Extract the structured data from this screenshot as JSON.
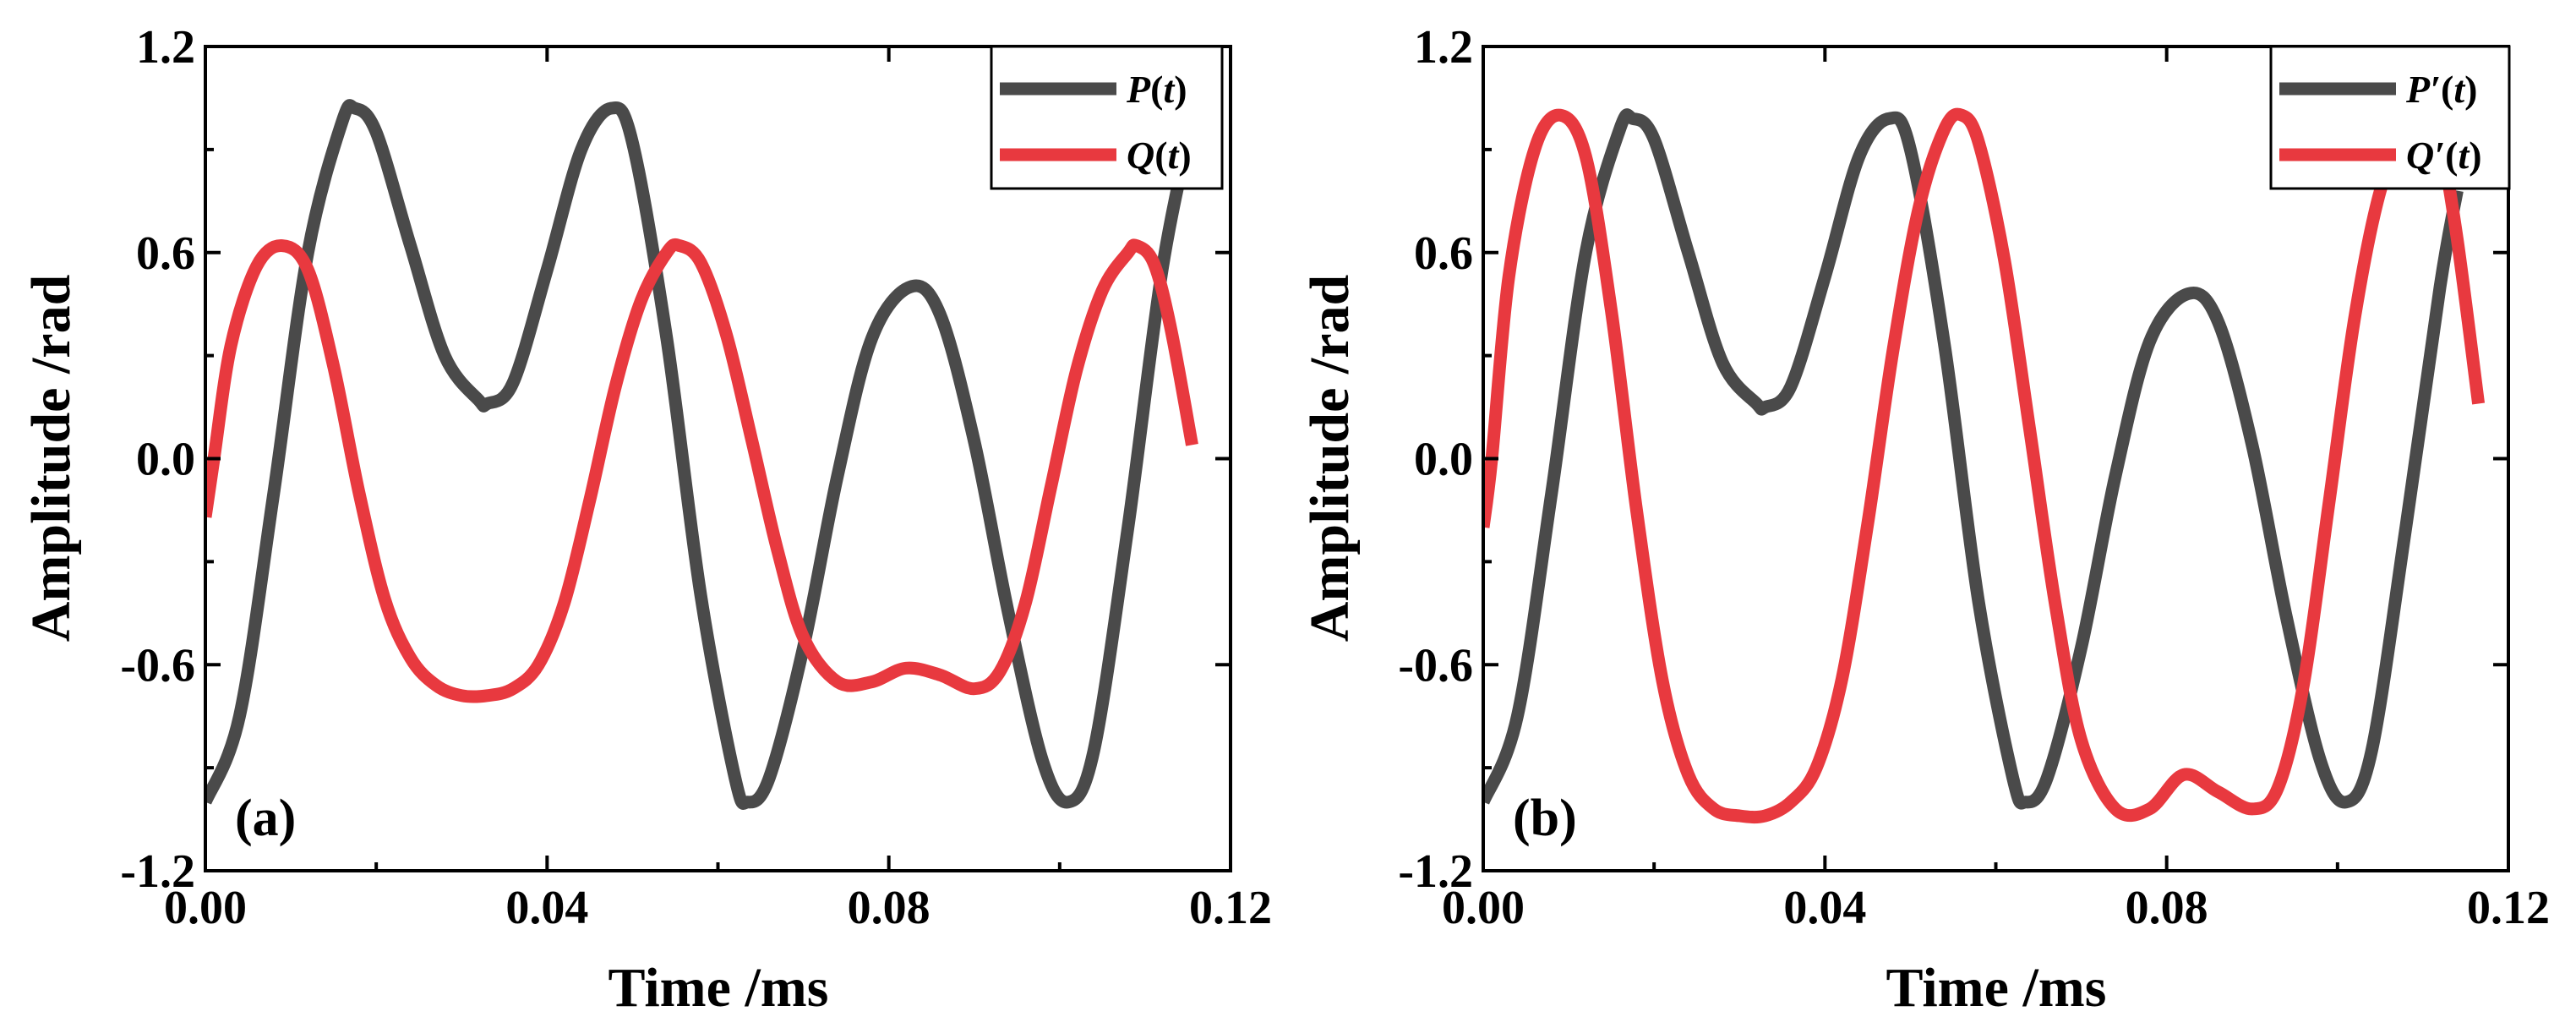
{
  "colors": {
    "p_series": "#4a4a4a",
    "q_series": "#e8393f",
    "axis": "#000000",
    "background": "#ffffff"
  },
  "chart_data": [
    {
      "type": "line",
      "panel_label": "(a)",
      "xlabel": "Time /ms",
      "ylabel": "Amplitude /rad",
      "xlim": [
        0,
        0.12
      ],
      "ylim": [
        -1.2,
        1.2
      ],
      "x_ticks": [
        "0.00",
        "0.04",
        "0.08",
        "0.12"
      ],
      "x_tick_values": [
        0,
        0.04,
        0.08,
        0.12
      ],
      "y_ticks": [
        "-1.2",
        "-0.6",
        "0.0",
        "0.6",
        "1.2"
      ],
      "y_tick_values": [
        -1.2,
        -0.6,
        0,
        0.6,
        1.2
      ],
      "legend_position": "top-right",
      "series": [
        {
          "name": "P(t)",
          "legend_main": "P",
          "legend_prime": "",
          "legend_var": "t",
          "color": "#4a4a4a",
          "x": [
            0,
            0.004,
            0.008,
            0.012,
            0.016,
            0.0175,
            0.02,
            0.024,
            0.028,
            0.032,
            0.033,
            0.036,
            0.04,
            0.044,
            0.0475,
            0.05,
            0.054,
            0.058,
            0.062,
            0.0635,
            0.066,
            0.07,
            0.074,
            0.078,
            0.0825,
            0.086,
            0.09,
            0.094,
            0.098,
            0.101,
            0.104,
            0.108,
            0.112,
            0.1155
          ],
          "y": [
            -1.0,
            -0.75,
            -0.1,
            0.6,
            0.98,
            1.02,
            0.95,
            0.62,
            0.3,
            0.17,
            0.16,
            0.22,
            0.55,
            0.9,
            1.02,
            0.92,
            0.35,
            -0.4,
            -0.93,
            -1.0,
            -0.93,
            -0.55,
            -0.05,
            0.35,
            0.5,
            0.42,
            0.05,
            -0.45,
            -0.88,
            -1.0,
            -0.85,
            -0.2,
            0.55,
            0.98
          ]
        },
        {
          "name": "Q(t)",
          "legend_main": "Q",
          "legend_prime": "",
          "legend_var": "t",
          "color": "#e8393f",
          "x": [
            0,
            0.001,
            0.003,
            0.006,
            0.009,
            0.012,
            0.015,
            0.018,
            0.021,
            0.024,
            0.027,
            0.03,
            0.033,
            0.036,
            0.039,
            0.042,
            0.045,
            0.048,
            0.051,
            0.054,
            0.0555,
            0.058,
            0.061,
            0.064,
            0.067,
            0.07,
            0.074,
            0.078,
            0.082,
            0.086,
            0.09,
            0.093,
            0.096,
            0.099,
            0.102,
            0.105,
            0.108,
            0.109,
            0.111,
            0.113,
            0.1155
          ],
          "y": [
            -0.17,
            0.0,
            0.33,
            0.56,
            0.62,
            0.55,
            0.27,
            -0.1,
            -0.41,
            -0.58,
            -0.66,
            -0.69,
            -0.69,
            -0.67,
            -0.6,
            -0.42,
            -0.12,
            0.21,
            0.46,
            0.6,
            0.62,
            0.57,
            0.36,
            0.05,
            -0.27,
            -0.52,
            -0.65,
            -0.65,
            -0.61,
            -0.63,
            -0.67,
            -0.62,
            -0.42,
            -0.08,
            0.26,
            0.49,
            0.6,
            0.62,
            0.57,
            0.38,
            0.04
          ]
        }
      ]
    },
    {
      "type": "line",
      "panel_label": "(b)",
      "xlabel": "Time /ms",
      "ylabel": "Amplitude /rad",
      "xlim": [
        0,
        0.12
      ],
      "ylim": [
        -1.2,
        1.2
      ],
      "x_ticks": [
        "0.00",
        "0.04",
        "0.08",
        "0.12"
      ],
      "x_tick_values": [
        0,
        0.04,
        0.08,
        0.12
      ],
      "y_ticks": [
        "-1.2",
        "-0.6",
        "0.0",
        "0.6",
        "1.2"
      ],
      "y_tick_values": [
        -1.2,
        -0.6,
        0,
        0.6,
        1.2
      ],
      "legend_position": "top-right",
      "series": [
        {
          "name": "P′(t)",
          "legend_main": "P",
          "legend_prime": "′",
          "legend_var": "t",
          "color": "#4a4a4a",
          "x": [
            0,
            0.004,
            0.008,
            0.012,
            0.016,
            0.0175,
            0.02,
            0.024,
            0.028,
            0.032,
            0.033,
            0.036,
            0.04,
            0.044,
            0.0475,
            0.05,
            0.054,
            0.058,
            0.062,
            0.0635,
            0.066,
            0.07,
            0.074,
            0.078,
            0.0825,
            0.086,
            0.09,
            0.094,
            0.098,
            0.101,
            0.104,
            0.108,
            0.112,
            0.114
          ],
          "y": [
            -1.0,
            -0.75,
            -0.1,
            0.6,
            0.96,
            0.99,
            0.93,
            0.6,
            0.28,
            0.16,
            0.15,
            0.21,
            0.53,
            0.88,
            0.99,
            0.9,
            0.33,
            -0.42,
            -0.93,
            -1.0,
            -0.93,
            -0.55,
            -0.05,
            0.34,
            0.48,
            0.4,
            0.04,
            -0.46,
            -0.88,
            -1.0,
            -0.85,
            -0.2,
            0.5,
            0.78
          ]
        },
        {
          "name": "Q′(t)",
          "legend_main": "Q",
          "legend_prime": "′",
          "legend_var": "t",
          "color": "#e8393f",
          "x": [
            0,
            0.001,
            0.003,
            0.006,
            0.009,
            0.012,
            0.015,
            0.018,
            0.021,
            0.024,
            0.027,
            0.03,
            0.033,
            0.036,
            0.039,
            0.042,
            0.045,
            0.048,
            0.051,
            0.054,
            0.056,
            0.058,
            0.061,
            0.064,
            0.067,
            0.07,
            0.074,
            0.078,
            0.082,
            0.086,
            0.09,
            0.093,
            0.096,
            0.099,
            0.102,
            0.105,
            0.108,
            0.11,
            0.112,
            0.114,
            0.1165
          ],
          "y": [
            -0.2,
            0.0,
            0.53,
            0.9,
            1.0,
            0.88,
            0.43,
            -0.16,
            -0.65,
            -0.92,
            -1.02,
            -1.04,
            -1.04,
            -1.0,
            -0.9,
            -0.64,
            -0.19,
            0.32,
            0.73,
            0.96,
            1.0,
            0.92,
            0.58,
            0.08,
            -0.43,
            -0.82,
            -1.02,
            -1.02,
            -0.92,
            -0.97,
            -1.02,
            -0.96,
            -0.66,
            -0.13,
            0.41,
            0.78,
            0.95,
            1.0,
            0.92,
            0.64,
            0.16
          ]
        }
      ]
    }
  ]
}
